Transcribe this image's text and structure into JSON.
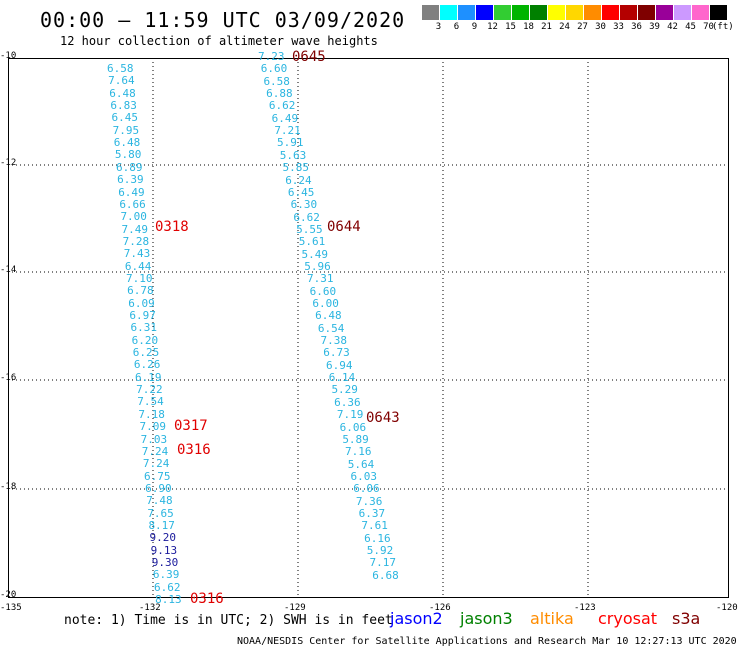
{
  "header": {
    "title": "00:00 — 11:59 UTC 03/09/2020",
    "subtitle": "12 hour collection of altimeter wave heights"
  },
  "colorbar": {
    "swatches": [
      {
        "label": "3",
        "color": "#808080"
      },
      {
        "label": "6",
        "color": "#00ffff"
      },
      {
        "label": "9",
        "color": "#1e90ff"
      },
      {
        "label": "12",
        "color": "#0000ff"
      },
      {
        "label": "15",
        "color": "#32cd32"
      },
      {
        "label": "18",
        "color": "#00b400"
      },
      {
        "label": "21",
        "color": "#008000"
      },
      {
        "label": "24",
        "color": "#ffff00"
      },
      {
        "label": "27",
        "color": "#ffd700"
      },
      {
        "label": "30",
        "color": "#ff8c00"
      },
      {
        "label": "33",
        "color": "#ff0000"
      },
      {
        "label": "36",
        "color": "#b40000"
      },
      {
        "label": "39",
        "color": "#7f0000"
      },
      {
        "label": "42",
        "color": "#990099"
      },
      {
        "label": "45",
        "color": "#cc99ff"
      },
      {
        "label": "70",
        "color": "#ff66cc"
      },
      {
        "label": "",
        "color": "#000000"
      }
    ],
    "unit": "(ft)"
  },
  "map": {
    "lat_labels": [
      "-10",
      "-12",
      "-14",
      "-16",
      "-18",
      "-20"
    ],
    "lon_labels": [
      "-135",
      "-132",
      "-129",
      "-126",
      "-123",
      "-120"
    ],
    "track_left": [
      "6.58",
      "7.64",
      "6.48",
      "6.83",
      "6.45",
      "7.95",
      "6.48",
      "5.80",
      "6.89",
      "6.39",
      "6.49",
      "6.66",
      "7.00",
      "7.49",
      "7.28",
      "7.43",
      "6.44",
      "7.10",
      "6.78",
      "6.09",
      "6.97",
      "6.31",
      "6.20",
      "6.25",
      "6.26",
      "6.19",
      "7.22",
      "7.54",
      "7.18",
      "7.09",
      "7.03",
      "7.24",
      "7.24",
      "6.75",
      "6.90",
      "7.48",
      "7.65",
      "8.17",
      "9.20",
      "9.13",
      "9.30",
      "6.39",
      "6.62",
      "8.13"
    ],
    "track_right": [
      "7.23",
      "6.60",
      "6.58",
      "6.88",
      "6.62",
      "6.49",
      "7.21",
      "5.91",
      "5.63",
      "5.85",
      "6.24",
      "6.45",
      "6.30",
      "6.62",
      "5.55",
      "5.61",
      "5.49",
      "5.96",
      "7.31",
      "6.60",
      "6.00",
      "6.48",
      "6.54",
      "7.38",
      "6.73",
      "6.94",
      "6.14",
      "5.29",
      "6.36",
      "7.19",
      "6.06",
      "5.89",
      "7.16",
      "5.64",
      "6.03",
      "6.06",
      "7.36",
      "6.37",
      "7.61",
      "6.16",
      "5.92",
      "7.17",
      "6.68"
    ],
    "time_labels": [
      {
        "text": "0645",
        "color": "maroon"
      },
      {
        "text": "0318",
        "color": "red"
      },
      {
        "text": "0644",
        "color": "maroon"
      },
      {
        "text": "0643",
        "color": "maroon"
      },
      {
        "text": "0317",
        "color": "red"
      },
      {
        "text": "0316",
        "color": "red"
      },
      {
        "text": "0316",
        "color": "red"
      }
    ]
  },
  "footer": {
    "note": "note: 1) Time is in UTC; 2) SWH is in feet",
    "satellites": [
      {
        "name": "jason2",
        "color": "#0000ff"
      },
      {
        "name": "jason3",
        "color": "#008000"
      },
      {
        "name": "altika",
        "color": "#ff8c00"
      },
      {
        "name": "cryosat",
        "color": "#ff0000"
      },
      {
        "name": "s3a",
        "color": "#800000"
      }
    ],
    "credit": "NOAA/NESDIS Center for Satellite Applications and Research   Mar 10 12:27:13 UTC 2020"
  }
}
